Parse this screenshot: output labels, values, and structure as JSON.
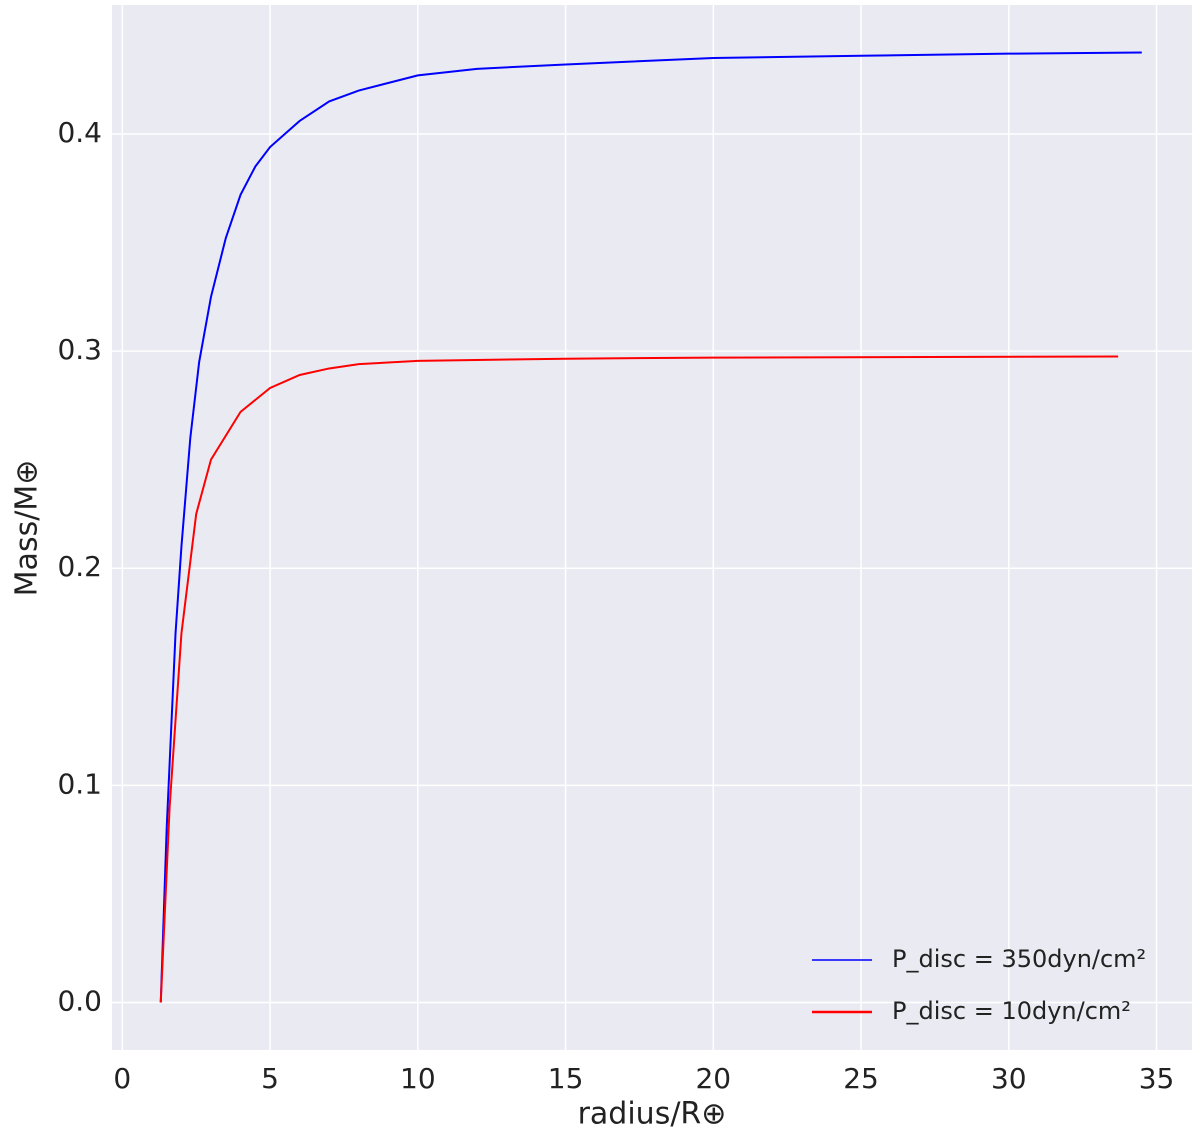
{
  "chart_data": {
    "type": "line",
    "xlabel": "radius/R⊕",
    "ylabel": "Mass/M⊕",
    "series": [
      {
        "name": "P_disc = 350dyn/cm²",
        "color": "#0000ff",
        "x": [
          1.3,
          1.5,
          1.8,
          2.0,
          2.3,
          2.6,
          3.0,
          3.5,
          4,
          4.5,
          5,
          6,
          7,
          8,
          10,
          12,
          15,
          20,
          25,
          30,
          34.5
        ],
        "values": [
          0,
          0.08,
          0.17,
          0.21,
          0.26,
          0.295,
          0.325,
          0.352,
          0.372,
          0.385,
          0.394,
          0.406,
          0.415,
          0.42,
          0.427,
          0.43,
          0.432,
          0.435,
          0.436,
          0.437,
          0.4375
        ]
      },
      {
        "name": "P_disc = 10dyn/cm²",
        "color": "#ff0000",
        "x": [
          1.3,
          1.6,
          2.0,
          2.5,
          3,
          4,
          5,
          6,
          7,
          8,
          10,
          15,
          20,
          33.7
        ],
        "values": [
          0,
          0.09,
          0.17,
          0.225,
          0.25,
          0.272,
          0.283,
          0.289,
          0.292,
          0.294,
          0.2955,
          0.2965,
          0.297,
          0.2975
        ]
      }
    ],
    "xlim": [
      -0.35,
      36.2
    ],
    "ylim": [
      -0.0219,
      0.4594
    ],
    "xticks": [
      0,
      5,
      10,
      15,
      20,
      25,
      30,
      35
    ],
    "yticks": [
      {
        "value": 0,
        "label": "0.0"
      },
      0.1,
      0.2,
      0.3,
      0.4
    ],
    "grid": true,
    "legend": "lower right"
  }
}
